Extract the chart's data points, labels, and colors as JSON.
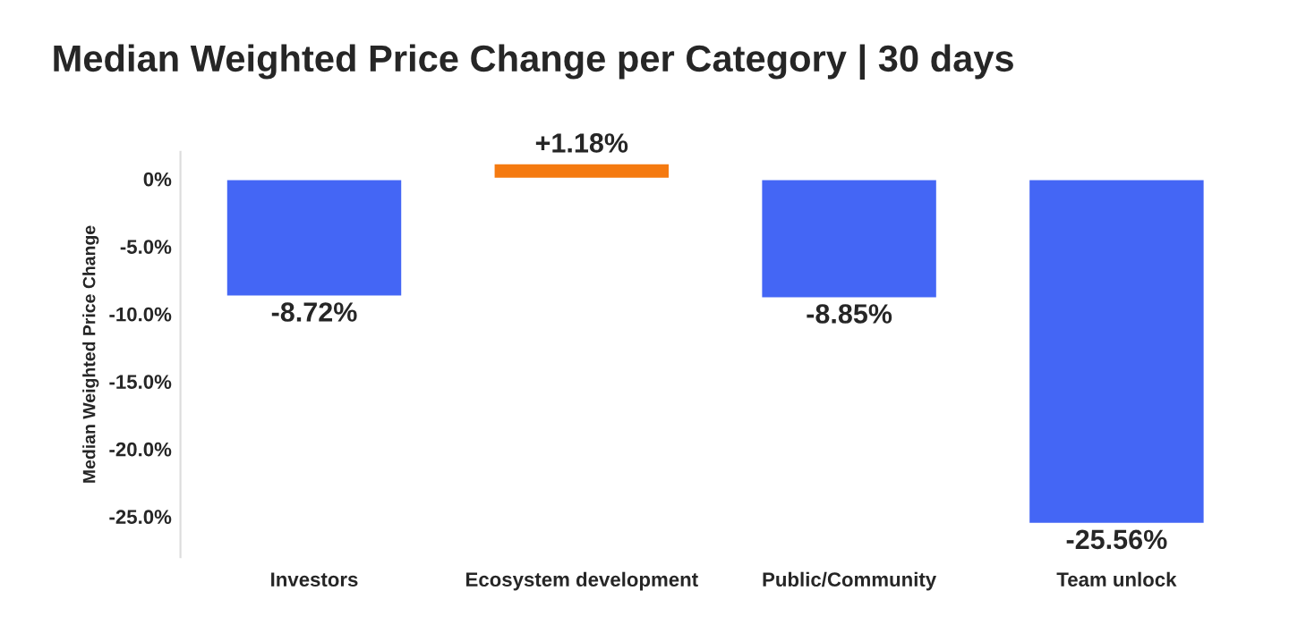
{
  "chart_data": {
    "type": "bar",
    "title": "Median Weighted Price Change per Category | 30 days",
    "ylabel": "Median Weighted Price Change",
    "categories": [
      "Investors",
      "Ecosystem development",
      "Public/Community",
      "Team unlock"
    ],
    "values": [
      -8.72,
      1.18,
      -8.85,
      -25.56
    ],
    "colors": [
      "#4466f5",
      "#f57a10",
      "#4466f5",
      "#4466f5"
    ],
    "value_labels": [
      "-8.72%",
      "+1.18%",
      "-8.85%",
      "-25.56%"
    ],
    "ylim": [
      -28,
      2
    ],
    "yticks": [
      {
        "value": 0,
        "label": "0%"
      },
      {
        "value": -5,
        "label": "-5.0%"
      },
      {
        "value": -10,
        "label": "-10.0%"
      },
      {
        "value": -15,
        "label": "-15.0%"
      },
      {
        "value": -20,
        "label": "-20.0%"
      },
      {
        "value": -25,
        "label": "-25.0%"
      }
    ],
    "grid": false,
    "legend": false
  }
}
